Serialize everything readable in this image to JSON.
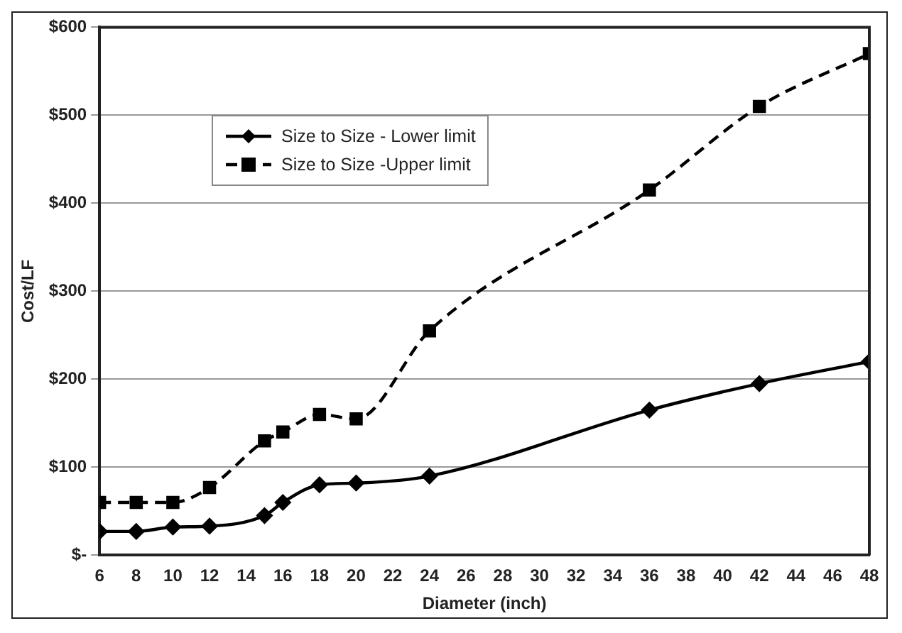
{
  "chart_data": {
    "type": "line",
    "xlabel": "Diameter (inch)",
    "ylabel": "Cost/LF",
    "x": [
      6,
      8,
      10,
      12,
      15,
      16,
      18,
      20,
      24,
      36,
      42,
      48
    ],
    "xlim": [
      6,
      48
    ],
    "xticks": [
      6,
      8,
      10,
      12,
      14,
      16,
      18,
      20,
      22,
      24,
      26,
      28,
      30,
      32,
      34,
      36,
      38,
      40,
      42,
      44,
      46,
      48
    ],
    "ylim": [
      0,
      600
    ],
    "yticks": [
      {
        "value": 0,
        "label": "$-"
      },
      {
        "value": 100,
        "label": "$100"
      },
      {
        "value": 200,
        "label": "$200"
      },
      {
        "value": 300,
        "label": "$300"
      },
      {
        "value": 400,
        "label": "$400"
      },
      {
        "value": 500,
        "label": "$500"
      },
      {
        "value": 600,
        "label": "$600"
      }
    ],
    "grid": "y",
    "legend": "top left",
    "series": [
      {
        "name": "Size to Size - Lower limit",
        "color": "#000000",
        "marker": "diamond",
        "line_style": "solid",
        "values": [
          27,
          27,
          32,
          33,
          45,
          60,
          80,
          82,
          90,
          165,
          195,
          220
        ]
      },
      {
        "name": "Size to Size -Upper limit",
        "color": "#000000",
        "marker": "square",
        "line_style": "dashed",
        "values": [
          60,
          60,
          60,
          77,
          130,
          140,
          160,
          155,
          255,
          415,
          510,
          570
        ]
      }
    ]
  }
}
